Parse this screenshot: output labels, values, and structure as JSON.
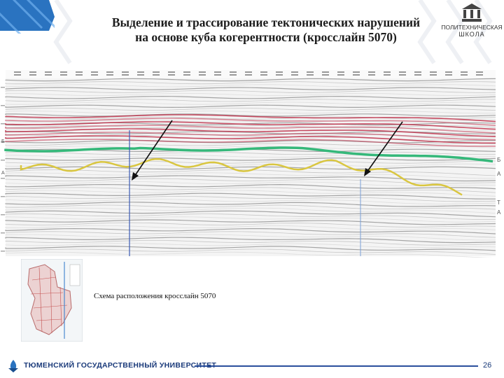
{
  "title": {
    "line1": "Выделение и трассирование тектонических нарушений",
    "line2": "на основе куба когерентности (кросслайн 5070)"
  },
  "logo": {
    "line1": "ПОЛИТЕХНИЧЕСКАЯ",
    "line2": "ШКОЛА",
    "icon": "institution-columns-icon"
  },
  "seismic": {
    "horizon_labels_right": [
      "Б",
      "А",
      "Т",
      "А"
    ],
    "horizon_labels_left": [
      "Б",
      "А"
    ],
    "colors": {
      "red_band": "#c0304a",
      "green_horizon": "#35b87a",
      "yellow_horizon": "#d9c640",
      "fault_line": "#3b5bb5",
      "arrow": "#111111"
    }
  },
  "caption": "Схема расположения кросслайн 5070",
  "footer": {
    "university": "ТЮМЕНСКИЙ ГОСУДАРСТВЕННЫЙ УНИВЕРСИТЕТ",
    "page_number": "26",
    "accent": "#2a4f9c"
  }
}
